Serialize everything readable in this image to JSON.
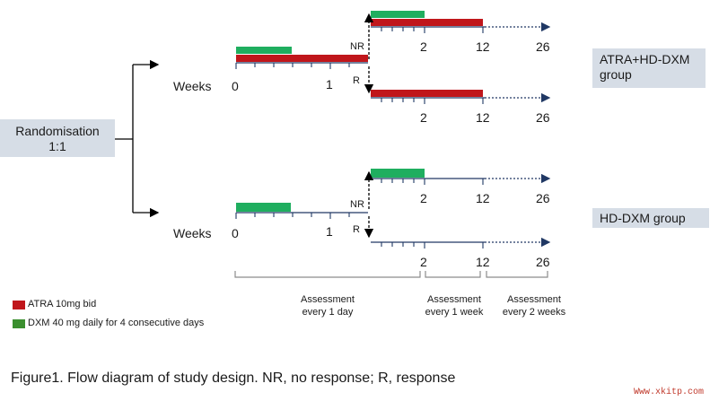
{
  "randomisation": {
    "line1": "Randomisation",
    "line2": "1:1"
  },
  "groups": {
    "top": {
      "line1": "ATRA+HD-DXM",
      "line2": "group"
    },
    "bottom": {
      "label": "HD-DXM  group"
    }
  },
  "timeline": {
    "weeks_label": "Weeks",
    "tick_0": "0",
    "tick_1": "1",
    "nr_label": "NR",
    "r_label": "R",
    "tick_2": "2",
    "tick_12": "12",
    "tick_26": "26"
  },
  "assessments": [
    {
      "line1": "Assessment",
      "line2": "every 1 day"
    },
    {
      "line1": "Assessment",
      "line2": "every 1 week"
    },
    {
      "line1": "Assessment",
      "line2": "every 2 weeks"
    }
  ],
  "legend": {
    "atra": {
      "label": "ATRA 10mg bid",
      "color": "#c0161b"
    },
    "dxm": {
      "label": "DXM  40 mg daily for 4 consecutive days",
      "color": "#1fae5f"
    }
  },
  "caption": "Figure1. Flow diagram of study design. NR, no response; R, response",
  "watermark": "Www.xkitp.com",
  "colors": {
    "axis": "#203864",
    "bracket": "#8c8c8c",
    "box": "#d6dde6"
  }
}
